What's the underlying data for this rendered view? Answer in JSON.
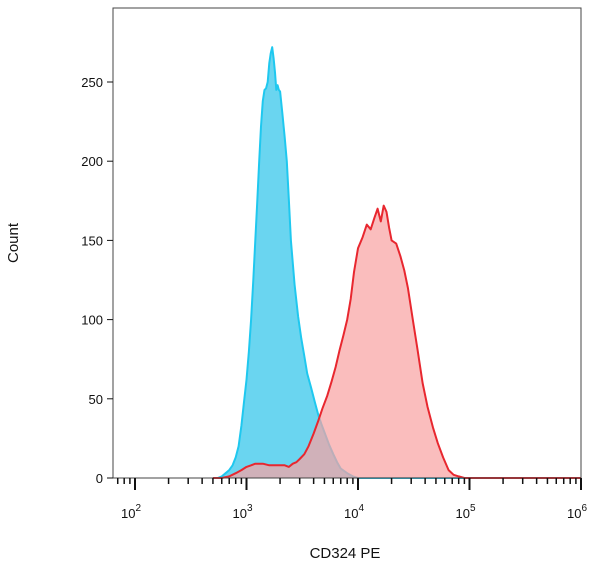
{
  "chart_data": {
    "type": "area",
    "title": "",
    "xlabel": "CD324 PE",
    "ylabel": "Count",
    "x_scale": "log",
    "xlim": [
      500,
      1000000
    ],
    "ylim": [
      0,
      272
    ],
    "y_ticks": [
      0,
      50,
      100,
      150,
      200,
      250
    ],
    "x_tick_labels": [
      {
        "base": "10",
        "exp": "2"
      },
      {
        "base": "10",
        "exp": "3"
      },
      {
        "base": "10",
        "exp": "4"
      },
      {
        "base": "10",
        "exp": "5"
      },
      {
        "base": "10",
        "exp": "6"
      }
    ],
    "grid": false,
    "legend": "none",
    "series": [
      {
        "color": "#1fc8ef",
        "fill": "#62d3ef",
        "x": [
          500,
          550,
          600,
          650,
          700,
          750,
          800,
          850,
          900,
          950,
          1000,
          1050,
          1100,
          1150,
          1200,
          1250,
          1300,
          1350,
          1400,
          1450,
          1500,
          1550,
          1600,
          1650,
          1700,
          1750,
          1800,
          1850,
          1900,
          1950,
          2000,
          2100,
          2200,
          2300,
          2400,
          2500,
          2700,
          2900,
          3100,
          3300,
          3500,
          3800,
          4100,
          4400,
          4700,
          5000,
          5500,
          6000,
          6500,
          7000,
          8000,
          9000,
          10000,
          20000,
          100000,
          1000000
        ],
        "y": [
          0,
          0,
          1,
          3,
          5,
          8,
          13,
          20,
          33,
          48,
          62,
          80,
          100,
          125,
          150,
          175,
          200,
          222,
          238,
          245,
          246,
          250,
          262,
          268,
          272,
          265,
          256,
          245,
          248,
          245,
          244,
          230,
          215,
          200,
          175,
          150,
          122,
          102,
          88,
          77,
          66,
          57,
          48,
          40,
          34,
          29,
          21,
          15,
          10,
          6,
          3,
          1,
          0,
          0,
          0,
          0
        ]
      },
      {
        "color": "#e8272f",
        "fill": "#f8a4a4",
        "x": [
          500,
          600,
          700,
          800,
          900,
          1000,
          1100,
          1200,
          1400,
          1600,
          1800,
          2000,
          2200,
          2400,
          2600,
          2800,
          3000,
          3300,
          3600,
          4000,
          4400,
          4800,
          5300,
          5800,
          6300,
          6800,
          7400,
          8000,
          8600,
          9200,
          10000,
          11000,
          12000,
          13000,
          14000,
          15000,
          16000,
          17000,
          18000,
          19000,
          20000,
          22000,
          24000,
          26000,
          28000,
          31000,
          34000,
          38000,
          42000,
          47000,
          52000,
          58000,
          65000,
          72000,
          80000,
          90000,
          100000,
          1000000
        ],
        "y": [
          0,
          0,
          1,
          3,
          5,
          7,
          8,
          9,
          9,
          8,
          8,
          8,
          8,
          7,
          9,
          10,
          12,
          15,
          20,
          28,
          36,
          44,
          52,
          61,
          70,
          80,
          90,
          100,
          113,
          130,
          145,
          152,
          160,
          157,
          164,
          170,
          162,
          172,
          168,
          158,
          150,
          148,
          140,
          131,
          120,
          100,
          82,
          60,
          45,
          32,
          22,
          13,
          5,
          2,
          1,
          0,
          0,
          0
        ]
      }
    ]
  }
}
